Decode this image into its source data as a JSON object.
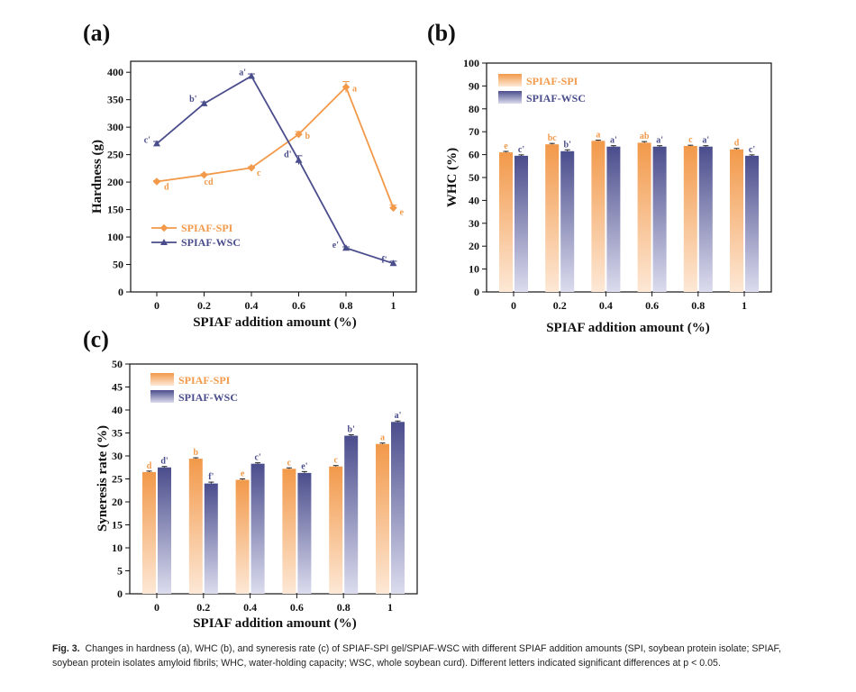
{
  "colors": {
    "spi": "#f2994a",
    "wsc": "#4a4d8c",
    "axis": "#111111"
  },
  "chart_data": [
    {
      "id": "a",
      "panel_label": "(a)",
      "type": "line",
      "title": "",
      "xlabel": "SPIAF addition amount (%)",
      "ylabel": "Hardness (g)",
      "x_ticks": [
        "0",
        "0.2",
        "0.4",
        "0.6",
        "0.8",
        "1"
      ],
      "y_ticks": [
        "0",
        "50",
        "100",
        "150",
        "200",
        "250",
        "300",
        "350",
        "400"
      ],
      "ylim": [
        0,
        420
      ],
      "legend_position": "left-lower",
      "series": [
        {
          "name": "SPIAF-SPI",
          "values": [
            201,
            213,
            226,
            287,
            373,
            153
          ],
          "err": [
            2,
            2,
            2,
            5,
            10,
            5
          ],
          "letters": [
            "d",
            "cd",
            "c",
            "b",
            "a",
            "e"
          ]
        },
        {
          "name": "SPIAF-WSC",
          "values": [
            270,
            343,
            393,
            240,
            80,
            52
          ],
          "err": [
            4,
            3,
            4,
            8,
            2,
            4
          ],
          "letters": [
            "c'",
            "b'",
            "a'",
            "d'",
            "e'",
            "f'"
          ]
        }
      ]
    },
    {
      "id": "b",
      "panel_label": "(b)",
      "type": "bar",
      "title": "",
      "xlabel": "SPIAF addition amount (%)",
      "ylabel": "WHC (%)",
      "x_ticks": [
        "0",
        "0.2",
        "0.4",
        "0.6",
        "0.8",
        "1"
      ],
      "y_ticks": [
        "0",
        "10",
        "20",
        "30",
        "40",
        "50",
        "60",
        "70",
        "80",
        "90",
        "100"
      ],
      "ylim": [
        0,
        100
      ],
      "legend_position": "top-left",
      "series": [
        {
          "name": "SPIAF-SPI",
          "values": [
            61,
            64.5,
            66,
            65.2,
            63.8,
            62.3
          ],
          "err": [
            0.4,
            0.4,
            0.3,
            0.5,
            0.3,
            0.4
          ],
          "letters": [
            "e",
            "bc",
            "a",
            "ab",
            "c",
            "d"
          ]
        },
        {
          "name": "SPIAF-WSC",
          "values": [
            59.5,
            61.5,
            63.5,
            63.5,
            63.5,
            59.5
          ],
          "err": [
            0.4,
            0.6,
            0.4,
            0.4,
            0.4,
            0.4
          ],
          "letters": [
            "c'",
            "b'",
            "a'",
            "a'",
            "a'",
            "c'"
          ]
        }
      ]
    },
    {
      "id": "c",
      "panel_label": "(c)",
      "type": "bar",
      "title": "",
      "xlabel": "SPIAF addition amount (%)",
      "ylabel": "Syneresis rate (%)",
      "x_ticks": [
        "0",
        "0.2",
        "0.4",
        "0.6",
        "0.8",
        "1"
      ],
      "y_ticks": [
        "0",
        "5",
        "10",
        "15",
        "20",
        "25",
        "30",
        "35",
        "40",
        "45",
        "50"
      ],
      "ylim": [
        0,
        50
      ],
      "legend_position": "top-left",
      "series": [
        {
          "name": "SPIAF-SPI",
          "values": [
            26.5,
            29.4,
            24.8,
            27.2,
            27.7,
            32.6
          ],
          "err": [
            0.2,
            0.2,
            0.2,
            0.2,
            0.2,
            0.2
          ],
          "letters": [
            "d",
            "b",
            "e",
            "c",
            "c",
            "a"
          ]
        },
        {
          "name": "SPIAF-WSC",
          "values": [
            27.5,
            24,
            28.3,
            26.3,
            34.4,
            37.4
          ],
          "err": [
            0.2,
            0.3,
            0.2,
            0.3,
            0.2,
            0.2
          ],
          "letters": [
            "d'",
            "f'",
            "c'",
            "e'",
            "b'",
            "a'"
          ]
        }
      ]
    }
  ],
  "caption": {
    "label": "Fig. 3.",
    "text": "Changes in hardness (a), WHC (b), and syneresis rate (c) of SPIAF-SPI gel/SPIAF-WSC with different SPIAF addition amounts (SPI, soybean protein isolate; SPIAF, soybean protein isolates amyloid fibrils; WHC, water-holding capacity; WSC, whole soybean curd). Different letters indicated significant differences at p < 0.05."
  }
}
